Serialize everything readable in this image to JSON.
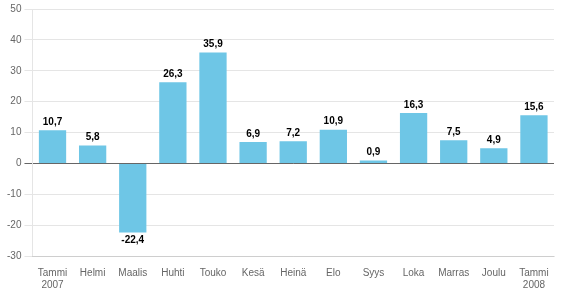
{
  "chart_data": {
    "type": "bar",
    "categories": [
      "Tammi\n2007",
      "Helmi",
      "Maalis",
      "Huhti",
      "Touko",
      "Kesä",
      "Heinä",
      "Elo",
      "Syys",
      "Loka",
      "Marras",
      "Joulu",
      "Tammi\n2008"
    ],
    "values": [
      10.7,
      5.8,
      -22.4,
      26.3,
      35.9,
      6.9,
      7.2,
      10.9,
      0.9,
      16.3,
      7.5,
      4.9,
      15.6
    ],
    "value_labels": [
      "10,7",
      "5,8",
      "-22,4",
      "26,3",
      "35,9",
      "6,9",
      "7,2",
      "10,9",
      "0,9",
      "16,3",
      "7,5",
      "4,9",
      "15,6"
    ],
    "data_labels": true,
    "color": "#6ec6e6",
    "ylim": [
      -30,
      50
    ],
    "yticks": [
      -30,
      -20,
      -10,
      0,
      10,
      20,
      30,
      40,
      50
    ],
    "grid": true
  }
}
